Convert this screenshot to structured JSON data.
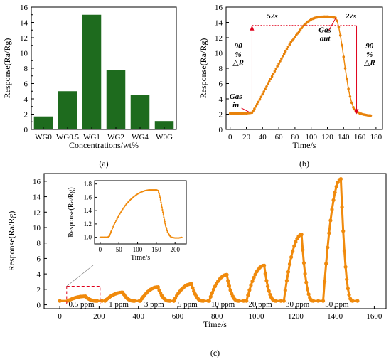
{
  "chart_data": [
    {
      "panel_label": "(a)",
      "type": "bar",
      "categories": [
        "WG0",
        "WG0.5",
        "WG1",
        "WG2",
        "WG4",
        "W0G"
      ],
      "values": [
        1.7,
        5.0,
        15.0,
        7.8,
        4.5,
        1.1
      ],
      "xlabel": "Concentrations/wt%",
      "ylabel": "Response(Ra/Rg)",
      "ylim": [
        0,
        16
      ],
      "yticks": [
        "0",
        "2",
        "4",
        "6",
        "8",
        "10",
        "12",
        "14",
        "16"
      ],
      "color": "#1e6b1e"
    },
    {
      "panel_label": "(b)",
      "type": "scatter",
      "xlabel": "Time/s",
      "ylabel": "Response(Ra/Rg)",
      "xlim": [
        -5,
        188
      ],
      "ylim": [
        0,
        16
      ],
      "xticks": [
        "0",
        "20",
        "40",
        "60",
        "80",
        "100",
        "120",
        "140",
        "160",
        "180"
      ],
      "yticks": [
        "0",
        "2",
        "4",
        "6",
        "8",
        "10",
        "12",
        "14",
        "16"
      ],
      "color": "#f08a0c",
      "marker_color": "#e8820a",
      "annotations": {
        "gas_in": [
          "Gas",
          "in"
        ],
        "gas_out": [
          "Gas",
          "out"
        ],
        "response_time": "52s",
        "recovery_time": "27s",
        "left_90": [
          "90",
          "%",
          "△R"
        ],
        "right_90": [
          "90",
          "%",
          "△R"
        ]
      },
      "series": [
        {
          "points": [
            [
              0,
              2.1
            ],
            [
              10,
              2.1
            ],
            [
              20,
              2.12
            ],
            [
              27,
              2.2
            ],
            [
              30,
              2.7
            ],
            [
              35,
              3.6
            ],
            [
              40,
              4.6
            ],
            [
              45,
              5.6
            ],
            [
              50,
              6.6
            ],
            [
              55,
              7.6
            ],
            [
              60,
              8.6
            ],
            [
              65,
              9.6
            ],
            [
              70,
              10.5
            ],
            [
              75,
              11.4
            ],
            [
              80,
              12.1
            ],
            [
              85,
              12.8
            ],
            [
              90,
              13.5
            ],
            [
              95,
              14.0
            ],
            [
              100,
              14.4
            ],
            [
              105,
              14.6
            ],
            [
              110,
              14.7
            ],
            [
              115,
              14.75
            ],
            [
              120,
              14.75
            ],
            [
              125,
              14.7
            ],
            [
              130,
              14.6
            ],
            [
              132,
              14.2
            ],
            [
              134,
              13.4
            ],
            [
              136,
              12.3
            ],
            [
              138,
              11.0
            ],
            [
              140,
              9.5
            ],
            [
              142,
              8.0
            ],
            [
              144,
              6.6
            ],
            [
              146,
              5.3
            ],
            [
              148,
              4.3
            ],
            [
              150,
              3.5
            ],
            [
              152,
              2.9
            ],
            [
              155,
              2.4
            ],
            [
              160,
              2.1
            ],
            [
              165,
              1.95
            ],
            [
              170,
              1.85
            ],
            [
              175,
              1.8
            ]
          ]
        }
      ]
    },
    {
      "panel_label": "(c)",
      "type": "scatter",
      "xlabel": "Time/s",
      "ylabel": "Response(Ra/Rg)",
      "xlim": [
        -80,
        1660
      ],
      "ylim": [
        -0.5,
        17
      ],
      "xticks": [
        "0",
        "200",
        "400",
        "600",
        "800",
        "1000",
        "1200",
        "1400",
        "1600"
      ],
      "yticks": [
        "0",
        "2",
        "4",
        "6",
        "8",
        "10",
        "12",
        "14",
        "16"
      ],
      "color": "#f08a0c",
      "concentration_labels": [
        "0.5 ppm",
        "1 ppm",
        "3 ppm",
        "5 ppm",
        "10 ppm",
        "20 ppm",
        "30 ppm",
        "50 ppm"
      ],
      "cycles": [
        {
          "label": "0.5 ppm",
          "start": 40,
          "peak": 1.1
        },
        {
          "label": "1 ppm",
          "start": 230,
          "peak": 1.6
        },
        {
          "label": "3 ppm",
          "start": 410,
          "peak": 2.3
        },
        {
          "label": "5 ppm",
          "start": 580,
          "peak": 2.7
        },
        {
          "label": "10 ppm",
          "start": 760,
          "peak": 3.9
        },
        {
          "label": "20 ppm",
          "start": 950,
          "peak": 5.1
        },
        {
          "label": "30 ppm",
          "start": 1140,
          "peak": 9.1
        },
        {
          "label": "50 ppm",
          "start": 1340,
          "peak": 16.3
        }
      ],
      "baseline": 0.5,
      "inset": {
        "type": "scatter",
        "xlabel": "Time/s",
        "ylabel": "Response(Ra/Rg)",
        "xlim": [
          -15,
          230
        ],
        "ylim": [
          0.9,
          1.85
        ],
        "xticks": [
          "0",
          "50",
          "100",
          "150",
          "200"
        ],
        "yticks": [
          "1.0",
          "1.2",
          "1.4",
          "1.6",
          "1.8"
        ],
        "points": [
          [
            0,
            1.0
          ],
          [
            10,
            1.0
          ],
          [
            20,
            1.0
          ],
          [
            25,
            1.02
          ],
          [
            30,
            1.1
          ],
          [
            40,
            1.22
          ],
          [
            50,
            1.33
          ],
          [
            60,
            1.42
          ],
          [
            70,
            1.5
          ],
          [
            80,
            1.56
          ],
          [
            90,
            1.61
          ],
          [
            100,
            1.65
          ],
          [
            110,
            1.68
          ],
          [
            120,
            1.7
          ],
          [
            130,
            1.71
          ],
          [
            140,
            1.71
          ],
          [
            150,
            1.71
          ],
          [
            155,
            1.7
          ],
          [
            160,
            1.6
          ],
          [
            165,
            1.45
          ],
          [
            170,
            1.3
          ],
          [
            175,
            1.17
          ],
          [
            180,
            1.08
          ],
          [
            185,
            1.03
          ],
          [
            190,
            1.0
          ],
          [
            200,
            0.99
          ],
          [
            210,
            0.99
          ],
          [
            220,
            1.0
          ]
        ]
      }
    }
  ]
}
